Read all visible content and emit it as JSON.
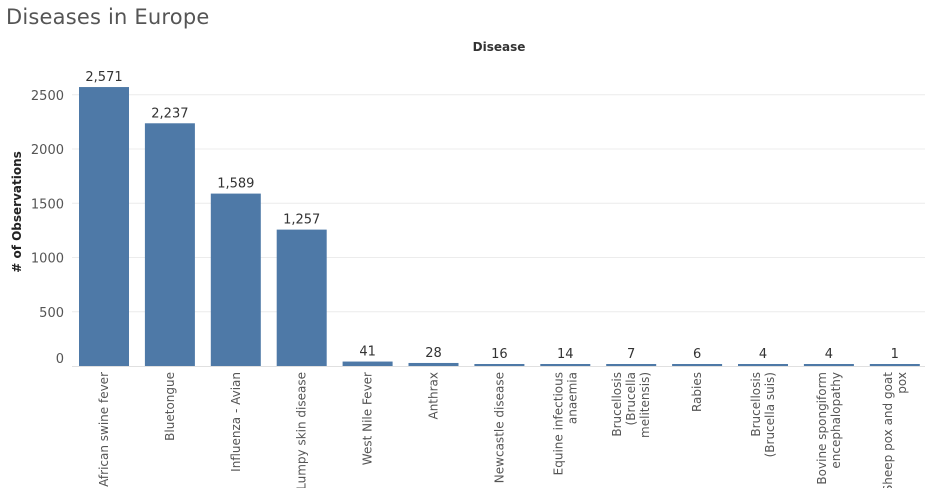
{
  "page": {
    "title": "Diseases in Europe"
  },
  "chart_data": {
    "type": "bar",
    "header": "Disease",
    "ylabel": "# of Observations",
    "xlabel": "",
    "ylim": [
      0,
      2800
    ],
    "yticks": [
      0,
      500,
      1000,
      1500,
      2000,
      2500
    ],
    "grid": "horizontal",
    "bar_color": "#4e79a7",
    "categories": [
      [
        "African swine fever"
      ],
      [
        "Bluetongue"
      ],
      [
        "Influenza - Avian"
      ],
      [
        "Lumpy skin disease"
      ],
      [
        "West Nile Fever"
      ],
      [
        "Anthrax"
      ],
      [
        "Newcastle disease"
      ],
      [
        "Equine infectious",
        "anaemia"
      ],
      [
        "Brucellosis",
        "(Brucella",
        "melitensis)"
      ],
      [
        "Rabies"
      ],
      [
        "Brucellosis",
        "(Brucella suis)"
      ],
      [
        "Bovine spongiform",
        "encephalopathy"
      ],
      [
        "Sheep pox and goat",
        "pox"
      ]
    ],
    "values": [
      2571,
      2237,
      1589,
      1257,
      41,
      28,
      16,
      14,
      7,
      6,
      4,
      4,
      1
    ],
    "value_labels": [
      "2,571",
      "2,237",
      "1,589",
      "1,257",
      "41",
      "28",
      "16",
      "14",
      "7",
      "6",
      "4",
      "4",
      "1"
    ]
  }
}
